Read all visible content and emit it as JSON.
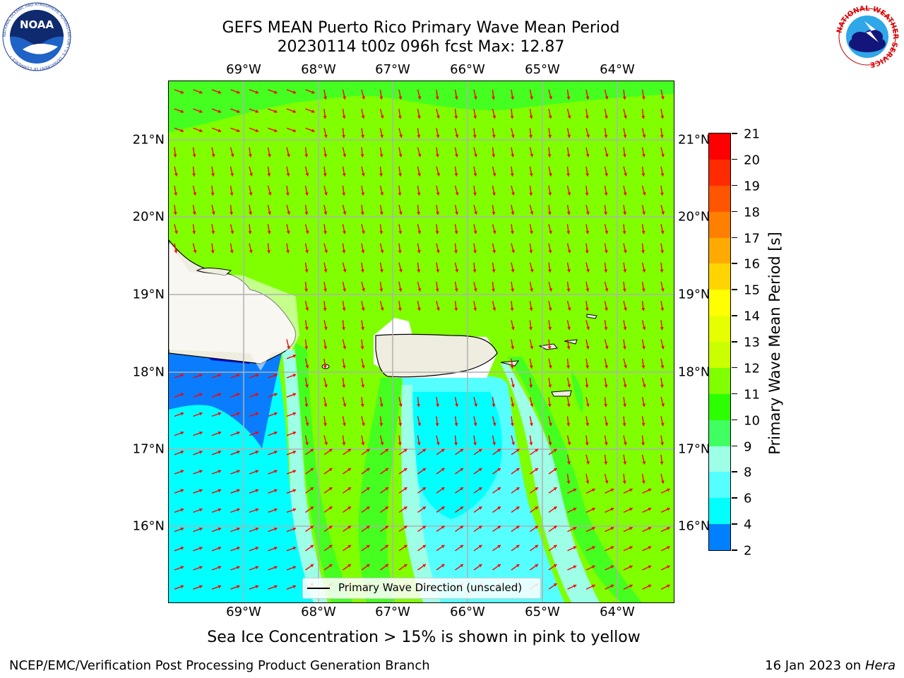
{
  "title": {
    "line1": "GEFS MEAN Puerto Rico Primary Wave Mean Period",
    "line2": "20230114 t00z 096h fcst   Max: 12.87"
  },
  "axes": {
    "lon_labels": [
      "69°W",
      "68°W",
      "67°W",
      "66°W",
      "65°W",
      "64°W"
    ],
    "lat_labels": [
      "21°N",
      "20°N",
      "19°N",
      "18°N",
      "17°N",
      "16°N"
    ]
  },
  "colorbar": {
    "title": "Primary Wave Mean Period [s]",
    "ticks": [
      "21",
      "20",
      "19",
      "18",
      "17",
      "16",
      "15",
      "14",
      "13",
      "12",
      "11",
      "10",
      "9",
      "8",
      "6",
      "4",
      "2"
    ],
    "colors": [
      "#ff0000",
      "#ff2a00",
      "#ff5500",
      "#ff7f00",
      "#ffaa00",
      "#ffd400",
      "#ffff00",
      "#e5ff00",
      "#caff00",
      "#7fff00",
      "#2bff00",
      "#40ff60",
      "#9cffe6",
      "#55ffff",
      "#00ffff",
      "#0080ff",
      "#0000ff"
    ]
  },
  "legend": {
    "label": "Primary Wave Direction (unscaled)"
  },
  "subtitle": "Sea Ice Concentration > 15% is shown in pink to yellow",
  "footer": {
    "left": "NCEP/EMC/Verification Post Processing Product Generation Branch",
    "date": "16 Jan 2023 on ",
    "host": "Hera"
  },
  "logos": {
    "noaa_text": "NOAA",
    "noaa_ring": "NATIONAL OCEANIC AND ATMOSPHERIC ADMINISTRATION • U.S. DEPARTMENT OF COMMERCE •",
    "nws_ring": "NATIONAL WEATHER SERVICE"
  },
  "colors": {
    "land": "#efede0",
    "period_13": "#7fff00",
    "period_12": "#44ff20",
    "period_10": "#a6ffe8",
    "period_8": "#55ffff",
    "period_6": "#00ffff",
    "period_4": "#0a7dff",
    "arrow": "#ff0000"
  }
}
